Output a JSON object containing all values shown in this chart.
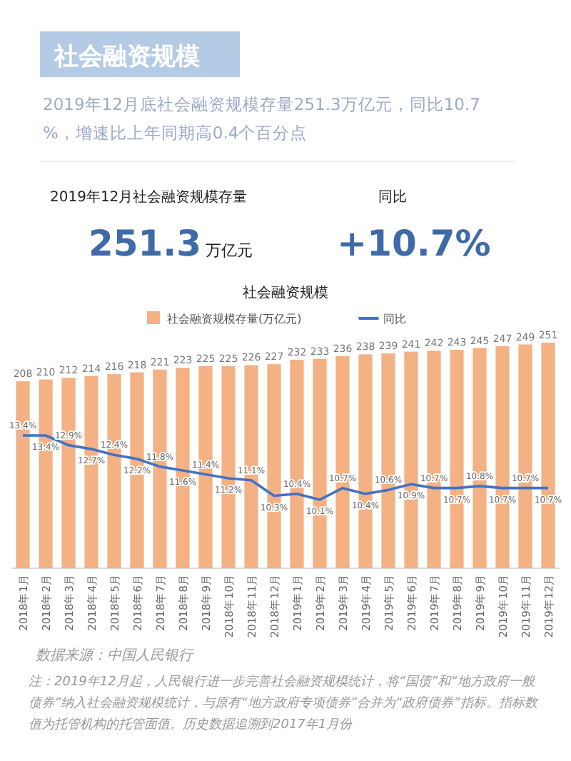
{
  "chart_data": {
    "type": "bar",
    "title": "社会融资规模",
    "categories": [
      "2018年1月",
      "2018年2月",
      "2018年3月",
      "2018年4月",
      "2018年5月",
      "2018年6月",
      "2018年7月",
      "2018年8月",
      "2018年9月",
      "2018年10月",
      "2018年11月",
      "2018年12月",
      "2019年1月",
      "2019年2月",
      "2019年3月",
      "2019年4月",
      "2019年5月",
      "2019年6月",
      "2019年7月",
      "2019年8月",
      "2019年9月",
      "2019年10月",
      "2019年11月",
      "2019年12月"
    ],
    "series": [
      {
        "name": "社会融资规模存量(万亿元)",
        "color": "#f4b183",
        "values": [
          208,
          210,
          212,
          214,
          216,
          218,
          221,
          223,
          225,
          225,
          226,
          227,
          232,
          233,
          236,
          238,
          239,
          241,
          242,
          243,
          245,
          247,
          249,
          251
        ]
      },
      {
        "name": "同比",
        "type": "line",
        "axis": "y2",
        "color": "#4472c4",
        "values": [
          13.4,
          13.4,
          12.9,
          12.7,
          12.4,
          12.2,
          11.8,
          11.6,
          11.4,
          11.2,
          11.1,
          10.3,
          10.4,
          10.1,
          10.7,
          10.4,
          10.6,
          10.9,
          10.7,
          10.7,
          10.8,
          10.7,
          10.7,
          10.7
        ],
        "value_labels": [
          "13.4%",
          "13.4%",
          "12.9%",
          "12.7%",
          "12.4%",
          "12.2%",
          "11.8%",
          "11.6%",
          "11.4%",
          "11.2%",
          "11.1%",
          "10.3%",
          "10.4%",
          "10.1%",
          "10.7%",
          "10.4%",
          "10.6%",
          "10.9%",
          "10.7%",
          "10.7%",
          "10.8%",
          "10.7%",
          "10.7%",
          "10.7%"
        ]
      }
    ],
    "data_labels": true,
    "legend": "top",
    "grid": false,
    "annotations": [
      "社会融资规模",
      "2019年12月底社会融资规模存量251.3万亿元，同比10.7%，增速比上年同期高0.4个百分点",
      "2019年12月社会融资规模存量",
      "251.3",
      "万亿元",
      "同比",
      "+10.7%",
      "数据来源：中国人民银行",
      "注：2019年12月起，人民银行进一步完善社会融资规模统计，将“国债”和“地方政府一般债券”纳入社会融资规模统计，与原有“地方政府专项债券”合并为“政府债券”指标。指标数值为托管机构的托管面值。历史数据追溯到2017年1月份"
    ]
  }
}
